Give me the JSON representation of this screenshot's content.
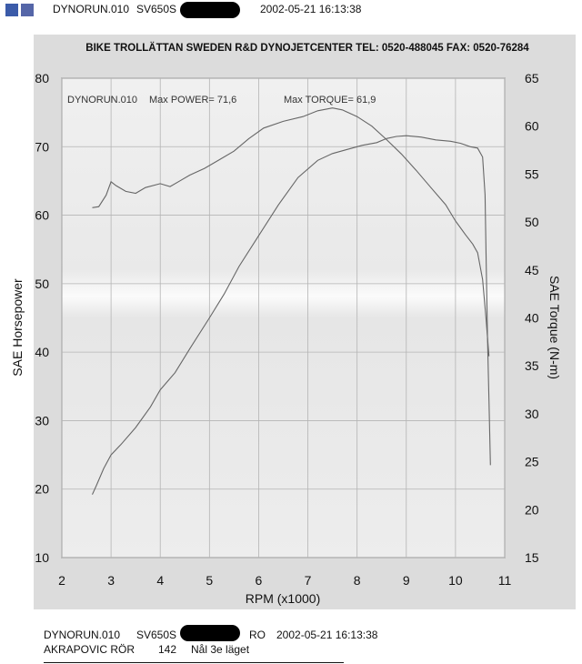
{
  "header": {
    "run_name": "DYNORUN.010",
    "model": "SV650S",
    "timestamp": "2002-05-21 16:13:38"
  },
  "chart_header": "BIKE TROLLÄTTAN SWEDEN R&D DYNOJETCENTER TEL: 0520-488045 FAX: 0520-76284",
  "footer": {
    "run_name": "DYNORUN.010",
    "model": "SV650S",
    "code": "RO",
    "timestamp": "2002-05-21 16:13:38",
    "line2_a": "AKRAPOVIC RÖR",
    "line2_b": "142",
    "line2_c": "Nål 3e läget"
  },
  "chart_data": {
    "type": "line",
    "annotation_run": "DYNORUN.010",
    "annotation_power": "Max POWER= 71,6",
    "annotation_torque": "Max TORQUE= 61,9",
    "xlabel": "RPM (x1000)",
    "ylabel_left": "SAE Horsepower",
    "ylabel_right": "SAE Torque (N-m)",
    "xlim": [
      2,
      11
    ],
    "ylim_left": [
      10,
      80
    ],
    "ylim_right": [
      15,
      65
    ],
    "x_ticks": [
      "2",
      "3",
      "4",
      "5",
      "6",
      "7",
      "8",
      "9",
      "10",
      "11"
    ],
    "y_left_ticks": [
      "10",
      "20",
      "30",
      "40",
      "50",
      "60",
      "70",
      "80"
    ],
    "y_right_ticks": [
      "15",
      "20",
      "25",
      "30",
      "35",
      "40",
      "45",
      "50",
      "55",
      "60",
      "65"
    ],
    "grid": true,
    "series": [
      {
        "axis": "left",
        "color": "#666666",
        "x": [
          2.62,
          2.7,
          2.85,
          3.0,
          3.2,
          3.5,
          3.8,
          4.0,
          4.3,
          4.6,
          5.0,
          5.3,
          5.6,
          6.0,
          6.4,
          6.8,
          7.2,
          7.5,
          7.8,
          8.1,
          8.4,
          8.6,
          8.8,
          9.0,
          9.3,
          9.6,
          9.9,
          10.1,
          10.3,
          10.45,
          10.55,
          10.6,
          10.62,
          10.65,
          10.68,
          10.71
        ],
        "y": [
          19.2,
          20.5,
          23.0,
          25.0,
          26.5,
          29.0,
          32.0,
          34.5,
          37.0,
          40.5,
          45.0,
          48.5,
          52.5,
          57.0,
          61.5,
          65.5,
          68.0,
          69.0,
          69.6,
          70.2,
          70.6,
          71.2,
          71.5,
          71.6,
          71.4,
          71.0,
          70.8,
          70.5,
          70.0,
          69.8,
          68.5,
          63.0,
          55.0,
          42.0,
          33.0,
          23.5
        ]
      },
      {
        "axis": "right",
        "color": "#666666",
        "x": [
          2.62,
          2.75,
          2.9,
          3.0,
          3.1,
          3.3,
          3.5,
          3.7,
          4.0,
          4.2,
          4.4,
          4.6,
          4.9,
          5.2,
          5.5,
          5.8,
          6.1,
          6.5,
          6.9,
          7.2,
          7.5,
          7.7,
          8.0,
          8.3,
          8.6,
          8.9,
          9.2,
          9.5,
          9.8,
          10.0,
          10.2,
          10.35,
          10.45,
          10.55,
          10.62,
          10.68
        ],
        "y": [
          51.5,
          51.6,
          52.8,
          54.2,
          53.8,
          53.2,
          53.0,
          53.6,
          54.0,
          53.7,
          54.3,
          54.9,
          55.6,
          56.5,
          57.4,
          58.7,
          59.8,
          60.5,
          61.0,
          61.6,
          61.9,
          61.7,
          61.0,
          60.0,
          58.6,
          57.1,
          55.4,
          53.6,
          51.8,
          50.1,
          48.7,
          47.7,
          46.8,
          44.0,
          40.0,
          36.0
        ]
      }
    ]
  }
}
